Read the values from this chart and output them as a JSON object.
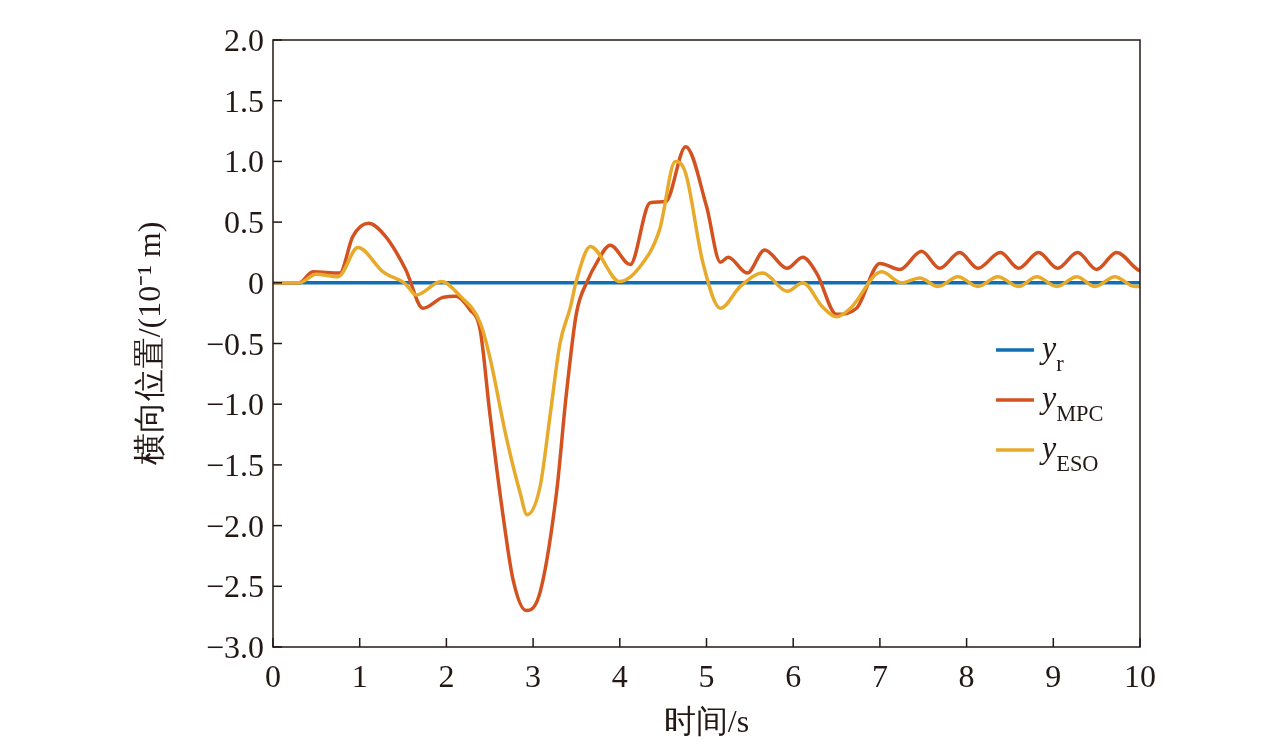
{
  "chart_data": {
    "type": "line",
    "xlabel": "时间/s",
    "ylabel": "横向位置/(10⁻¹ m)",
    "xlim": [
      0,
      10
    ],
    "ylim": [
      -3.0,
      2.0
    ],
    "xticks": [
      0,
      1,
      2,
      3,
      4,
      5,
      6,
      7,
      8,
      9,
      10
    ],
    "yticks": [
      {
        "value": -3.0,
        "label": "−3.0"
      },
      {
        "value": -2.5,
        "label": "−2.5"
      },
      {
        "value": -2.0,
        "label": "−2.0"
      },
      {
        "value": -1.5,
        "label": "−1.5"
      },
      {
        "value": -1.0,
        "label": "−1.0"
      },
      {
        "value": -0.5,
        "label": "−0.5"
      },
      0,
      {
        "value": 0.5,
        "label": "0.5"
      },
      {
        "value": 1.0,
        "label": "1.0"
      },
      {
        "value": 1.5,
        "label": "1.5"
      },
      {
        "value": 2.0,
        "label": "2.0"
      }
    ],
    "grid": false,
    "legend": "right",
    "marker": "none",
    "line_style": "solid",
    "series": [
      {
        "name": "y$_{r}$",
        "color": "#0f6eb4",
        "x": [
          0,
          10
        ],
        "values": [
          0,
          0
        ]
      },
      {
        "name": "y$_{MPC}$",
        "color": "#d35220",
        "x": [
          0,
          0.3,
          0.46,
          0.77,
          0.92,
          1.1,
          1.3,
          1.53,
          1.73,
          1.96,
          2.11,
          2.27,
          2.39,
          2.5,
          2.65,
          2.77,
          2.92,
          3.08,
          3.27,
          3.38,
          3.5,
          3.63,
          3.73,
          3.89,
          4.12,
          4.35,
          4.53,
          4.76,
          5.0,
          5.16,
          5.25,
          5.47,
          5.67,
          5.93,
          6.11,
          6.27,
          6.5,
          6.73,
          7.0,
          7.23,
          7.48,
          7.69,
          7.92,
          8.13,
          8.39,
          8.6,
          8.83,
          9.05,
          9.28,
          9.5,
          9.73,
          9.97,
          10
        ],
        "values": [
          0,
          0,
          0.09,
          0.08,
          0.38,
          0.49,
          0.38,
          0.11,
          -0.21,
          -0.12,
          -0.11,
          -0.22,
          -0.39,
          -1.07,
          -1.9,
          -2.45,
          -2.7,
          -2.55,
          -1.73,
          -0.94,
          -0.25,
          0.02,
          0.16,
          0.31,
          0.15,
          0.66,
          0.67,
          1.12,
          0.63,
          0.17,
          0.21,
          0.08,
          0.27,
          0.12,
          0.21,
          0.08,
          -0.26,
          -0.21,
          0.16,
          0.11,
          0.26,
          0.12,
          0.25,
          0.12,
          0.25,
          0.12,
          0.25,
          0.12,
          0.25,
          0.11,
          0.25,
          0.11,
          0.1
        ]
      },
      {
        "name": "y$_{ESO}$",
        "color": "#e8aa2a",
        "x": [
          0,
          0.3,
          0.5,
          0.75,
          0.98,
          1.27,
          1.53,
          1.65,
          1.94,
          2.16,
          2.39,
          2.5,
          2.69,
          2.85,
          2.93,
          3.08,
          3.2,
          3.31,
          3.43,
          3.5,
          3.66,
          4.0,
          4.23,
          4.46,
          4.64,
          4.76,
          4.96,
          5.16,
          5.39,
          5.65,
          5.93,
          6.11,
          6.34,
          6.5,
          6.66,
          7.02,
          7.25,
          7.46,
          7.67,
          7.9,
          8.13,
          8.36,
          8.6,
          8.81,
          9.04,
          9.27,
          9.48,
          9.71,
          9.94,
          10
        ],
        "values": [
          0,
          0,
          0.07,
          0.05,
          0.29,
          0.09,
          -0.01,
          -0.1,
          0.01,
          -0.11,
          -0.33,
          -0.61,
          -1.27,
          -1.73,
          -1.91,
          -1.68,
          -1.07,
          -0.5,
          -0.2,
          0.02,
          0.3,
          0.01,
          0.13,
          0.44,
          1.0,
          0.9,
          0.16,
          -0.21,
          -0.03,
          0.08,
          -0.07,
          0.0,
          -0.2,
          -0.28,
          -0.21,
          0.09,
          0.0,
          0.04,
          -0.03,
          0.05,
          -0.03,
          0.05,
          -0.03,
          0.05,
          -0.03,
          0.05,
          -0.03,
          0.05,
          -0.03,
          -0.03
        ]
      }
    ]
  }
}
